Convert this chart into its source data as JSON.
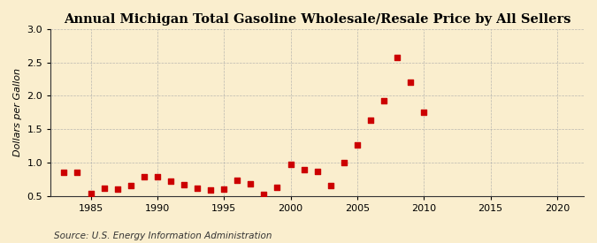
{
  "title": "Annual Michigan Total Gasoline Wholesale/Resale Price by All Sellers",
  "ylabel": "Dollars per Gallon",
  "source": "Source: U.S. Energy Information Administration",
  "years": [
    1983,
    1984,
    1985,
    1986,
    1987,
    1988,
    1989,
    1990,
    1991,
    1992,
    1993,
    1994,
    1995,
    1996,
    1997,
    1998,
    1999,
    2000,
    2001,
    2002,
    2003,
    2004,
    2005,
    2006,
    2007,
    2008,
    2009,
    2010
  ],
  "values": [
    0.85,
    0.85,
    0.53,
    0.61,
    0.6,
    0.66,
    0.79,
    0.79,
    0.72,
    0.67,
    0.61,
    0.59,
    0.6,
    0.74,
    0.68,
    0.52,
    0.63,
    0.97,
    0.9,
    0.87,
    0.65,
    1.0,
    1.27,
    1.63,
    1.93,
    2.57,
    2.2,
    1.75
  ],
  "marker_color": "#cc0000",
  "marker_size": 16,
  "background_color": "#faeece",
  "xlim": [
    1982,
    2022
  ],
  "ylim": [
    0.5,
    3.0
  ],
  "xticks": [
    1985,
    1990,
    1995,
    2000,
    2005,
    2010,
    2015,
    2020
  ],
  "yticks": [
    0.5,
    1.0,
    1.5,
    2.0,
    2.5,
    3.0
  ],
  "grid_color": "#aaaaaa",
  "title_fontsize": 10.5,
  "label_fontsize": 8,
  "tick_fontsize": 8,
  "source_fontsize": 7.5
}
